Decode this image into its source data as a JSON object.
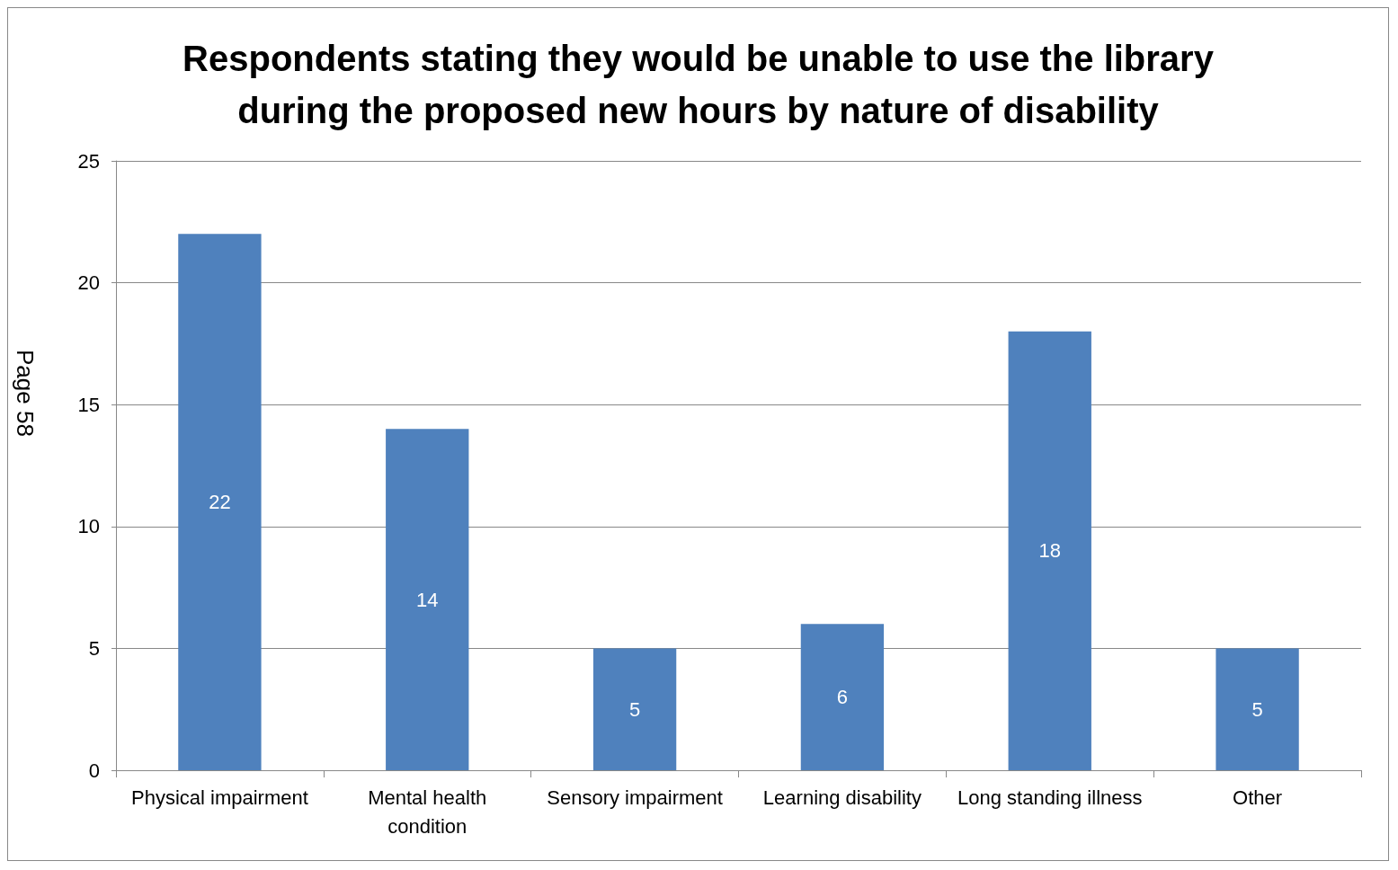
{
  "chart_data": {
    "type": "bar",
    "title": "Respondents stating they would be unable to use the library\nduring the proposed new hours by nature of disability",
    "categories": [
      "Physical impairment",
      "Mental health\ncondition",
      "Sensory impairment",
      "Learning disability",
      "Long standing illness",
      "Other"
    ],
    "values": [
      22,
      14,
      5,
      6,
      18,
      5
    ],
    "color": "#4f81bd",
    "ylim": [
      0,
      25
    ],
    "yticks": [
      0,
      5,
      10,
      15,
      20,
      25
    ],
    "grid": "y",
    "data_labels": true,
    "annotations": [
      "Page 58"
    ]
  }
}
